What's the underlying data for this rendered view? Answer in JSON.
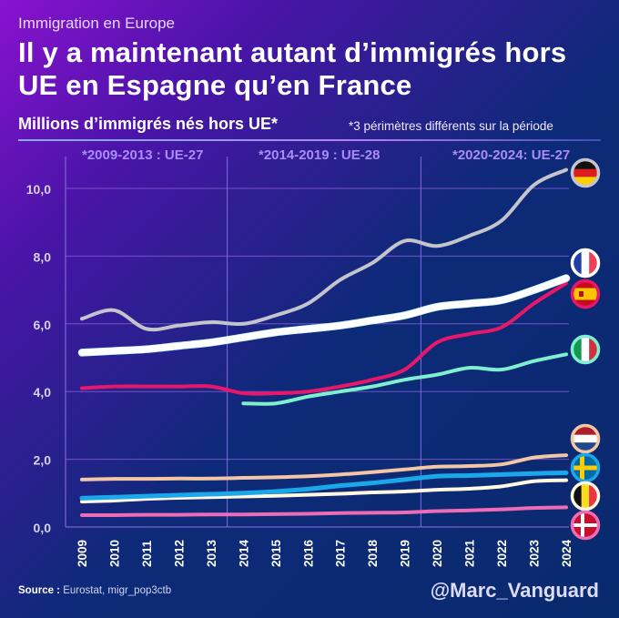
{
  "header": {
    "kicker": "Immigration en Europe",
    "title": "Il y a maintenant autant d’immigrés hors UE en Espagne qu’en France",
    "subtitle": "Millions d’immigrés nés hors UE*",
    "note": "*3 périmètres différents sur la période"
  },
  "periods": [
    {
      "label": "*2009-2013 : UE-27"
    },
    {
      "label": "*2014-2019 : UE-28"
    },
    {
      "label": "*2020-2024: UE-27"
    }
  ],
  "footer": {
    "source_label": "Source :",
    "source_text": " Eurostat, migr_pop3ctb",
    "handle": "@Marc_Vanguard"
  },
  "chart_data": {
    "type": "line",
    "title": "Il y a maintenant autant d’immigrés hors UE en Espagne qu’en France",
    "ylabel": "Millions d’immigrés nés hors UE",
    "xlabel": "",
    "x": [
      2009,
      2010,
      2011,
      2012,
      2013,
      2014,
      2015,
      2016,
      2017,
      2018,
      2019,
      2020,
      2021,
      2022,
      2023,
      2024
    ],
    "ylim": [
      0,
      11
    ],
    "yticks": [
      0,
      2,
      4,
      6,
      8,
      10
    ],
    "ytick_labels": [
      "0,0",
      "2,0",
      "4,0",
      "6,0",
      "8,0",
      "10,0"
    ],
    "grid": true,
    "period_dividers": [
      2013.5,
      2019.5
    ],
    "legend": "flag markers at line ends (right)",
    "series": [
      {
        "name": "Allemagne",
        "flag": "germany-flag",
        "color": "#c4c4cc",
        "values": [
          6.15,
          6.4,
          5.85,
          5.95,
          6.05,
          6.0,
          6.25,
          6.6,
          7.3,
          7.8,
          8.45,
          8.3,
          8.6,
          9.05,
          10.1,
          10.55
        ]
      },
      {
        "name": "France",
        "flag": "france-flag",
        "color": "#ffffff",
        "edge": "#bff4ff",
        "values": [
          5.15,
          5.2,
          5.25,
          5.35,
          5.45,
          5.6,
          5.75,
          5.85,
          5.95,
          6.1,
          6.25,
          6.5,
          6.6,
          6.7,
          7.0,
          7.35
        ]
      },
      {
        "name": "Espagne",
        "flag": "spain-flag",
        "color": "#e8176a",
        "values": [
          4.1,
          4.15,
          4.15,
          4.15,
          4.15,
          3.95,
          3.95,
          4.0,
          4.15,
          4.35,
          4.65,
          5.45,
          5.7,
          5.9,
          6.6,
          7.2
        ]
      },
      {
        "name": "Italie",
        "flag": "italy-flag",
        "color": "#7ff0cf",
        "values": [
          null,
          null,
          null,
          null,
          null,
          3.65,
          3.65,
          3.85,
          4.0,
          4.15,
          4.35,
          4.5,
          4.7,
          4.65,
          4.9,
          5.1
        ]
      },
      {
        "name": "Pays-Bas",
        "flag": "netherlands-flag",
        "color": "#f3c6a6",
        "values": [
          1.4,
          1.42,
          1.42,
          1.43,
          1.43,
          1.45,
          1.47,
          1.5,
          1.55,
          1.62,
          1.7,
          1.78,
          1.8,
          1.85,
          2.05,
          2.12
        ]
      },
      {
        "name": "Suède",
        "flag": "sweden-flag",
        "color": "#1ba8ea",
        "values": [
          0.85,
          0.88,
          0.91,
          0.94,
          0.97,
          1.0,
          1.05,
          1.12,
          1.22,
          1.3,
          1.4,
          1.5,
          1.52,
          1.55,
          1.58,
          1.6
        ]
      },
      {
        "name": "Belgique",
        "flag": "belgium-flag",
        "color": "#fff9e0",
        "values": [
          0.75,
          0.78,
          0.83,
          0.86,
          0.88,
          0.9,
          0.92,
          0.95,
          0.98,
          1.02,
          1.05,
          1.1,
          1.13,
          1.2,
          1.35,
          1.38
        ]
      },
      {
        "name": "Danemark",
        "flag": "denmark-flag",
        "color": "#ee6cb5",
        "values": [
          0.35,
          0.35,
          0.36,
          0.36,
          0.37,
          0.37,
          0.38,
          0.39,
          0.41,
          0.42,
          0.43,
          0.47,
          0.49,
          0.52,
          0.56,
          0.58
        ]
      }
    ]
  }
}
